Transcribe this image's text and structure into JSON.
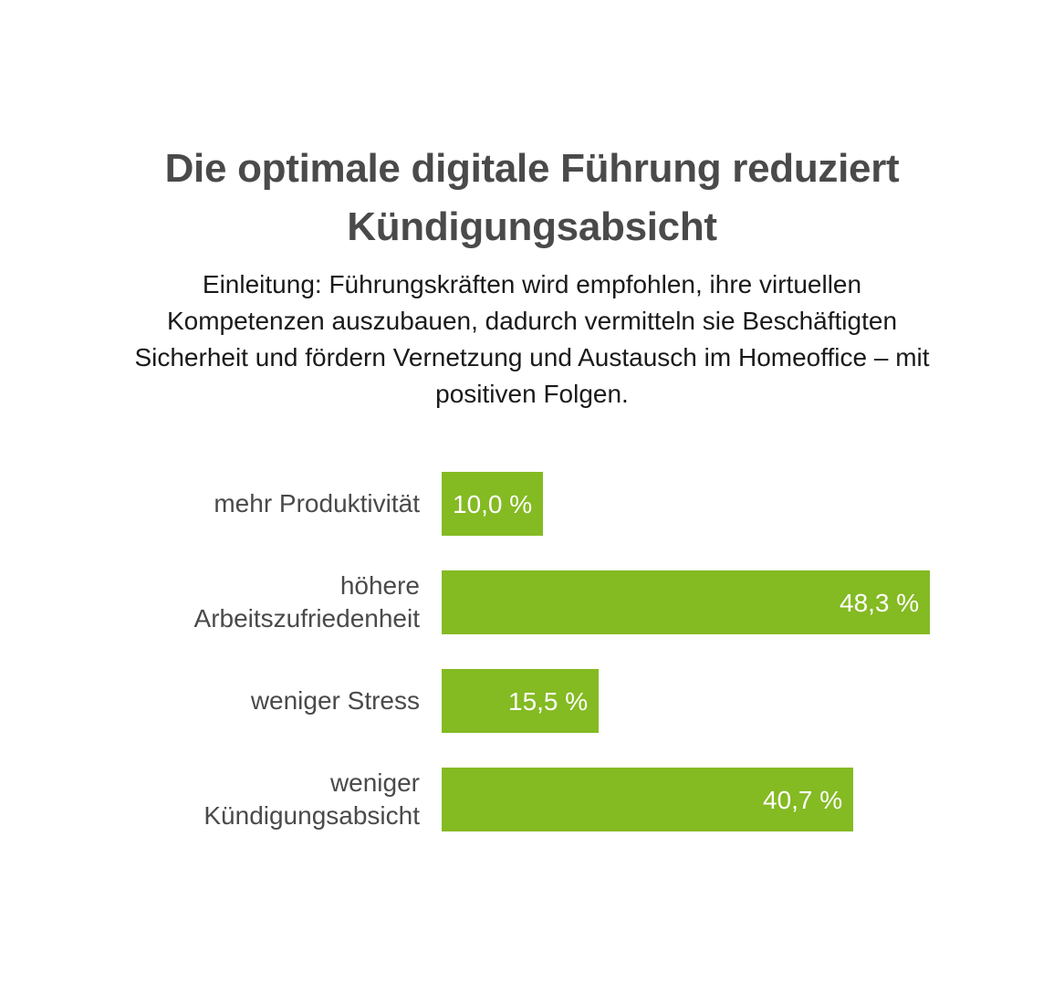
{
  "chart_data": {
    "type": "bar",
    "orientation": "horizontal",
    "title": "Die optimale digitale Führung reduziert Kündigungsabsicht",
    "subtitle": "Einleitung: Führungskräften wird empfohlen, ihre virtuellen Kompetenzen auszubauen, dadurch vermitteln sie Beschäftigten Sicherheit und fördern Vernetzung und Austausch im Homeoffice – mit positiven Folgen.",
    "categories": [
      "mehr Produktivität",
      "höhere Arbeitszufriedenheit",
      "weniger Stress",
      "weniger Kündigungsabsicht"
    ],
    "values": [
      10.0,
      48.3,
      15.5,
      40.7
    ],
    "value_labels": [
      "10,0 %",
      "48,3 %",
      "15,5 %",
      "40,7 %"
    ],
    "xlabel": "",
    "ylabel": "",
    "xlim": [
      0,
      48.3
    ],
    "unit": "%",
    "grid": false,
    "legend": "none",
    "colors": {
      "bar": "#84ba22",
      "text": "#4a4a4a",
      "value_text": "#ffffff"
    }
  }
}
